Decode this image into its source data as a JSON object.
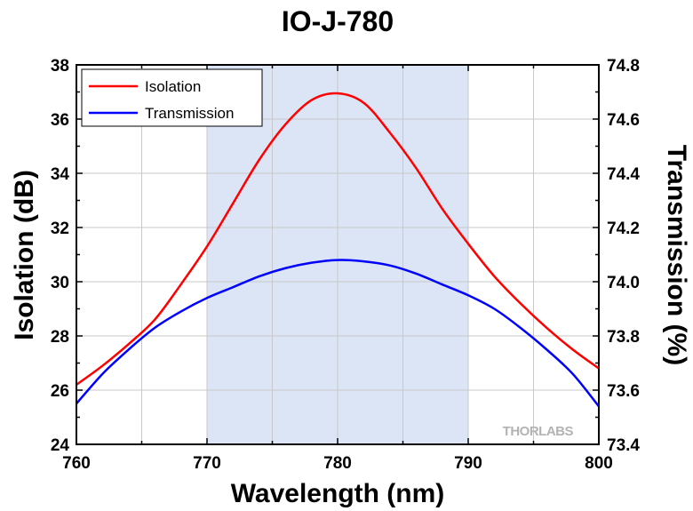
{
  "chart_data": {
    "type": "line",
    "title": "IO-J-780",
    "xlabel": "Wavelength (nm)",
    "ylabel": "Isolation (dB)",
    "y2label": "Transmission (%)",
    "xlim": [
      760,
      800
    ],
    "ylim": [
      24,
      38
    ],
    "y2lim": [
      73.4,
      74.8
    ],
    "xticks": [
      "760",
      "770",
      "780",
      "790",
      "800"
    ],
    "yticks": [
      "24",
      "26",
      "28",
      "30",
      "32",
      "34",
      "36",
      "38"
    ],
    "y2ticks": [
      "73.4",
      "73.6",
      "73.8",
      "74.0",
      "74.2",
      "74.4",
      "74.6",
      "74.8"
    ],
    "grid": true,
    "legend_position": "top-left",
    "highlight_band": {
      "x": [
        770,
        790
      ],
      "color": "#dbe5f5"
    },
    "watermark": "THORLABS",
    "series": [
      {
        "name": "Isolation",
        "axis": "left",
        "color": "#ff0000",
        "x": [
          760,
          762,
          764,
          766,
          768,
          770,
          772,
          774,
          776,
          778,
          780,
          782,
          784,
          786,
          788,
          790,
          792,
          794,
          796,
          798,
          800
        ],
        "y": [
          26.2,
          26.9,
          27.7,
          28.6,
          29.9,
          31.3,
          32.9,
          34.5,
          35.8,
          36.7,
          36.95,
          36.6,
          35.5,
          34.2,
          32.7,
          31.4,
          30.2,
          29.2,
          28.3,
          27.5,
          26.8
        ]
      },
      {
        "name": "Transmission",
        "axis": "right",
        "color": "#0000ff",
        "x": [
          760,
          762,
          764,
          766,
          768,
          770,
          772,
          774,
          776,
          778,
          780,
          782,
          784,
          786,
          788,
          790,
          792,
          794,
          796,
          798,
          800
        ],
        "y": [
          73.55,
          73.66,
          73.75,
          73.83,
          73.89,
          73.94,
          73.98,
          74.02,
          74.05,
          74.07,
          74.08,
          74.075,
          74.06,
          74.03,
          73.99,
          73.95,
          73.9,
          73.83,
          73.75,
          73.66,
          73.54
        ]
      }
    ]
  }
}
